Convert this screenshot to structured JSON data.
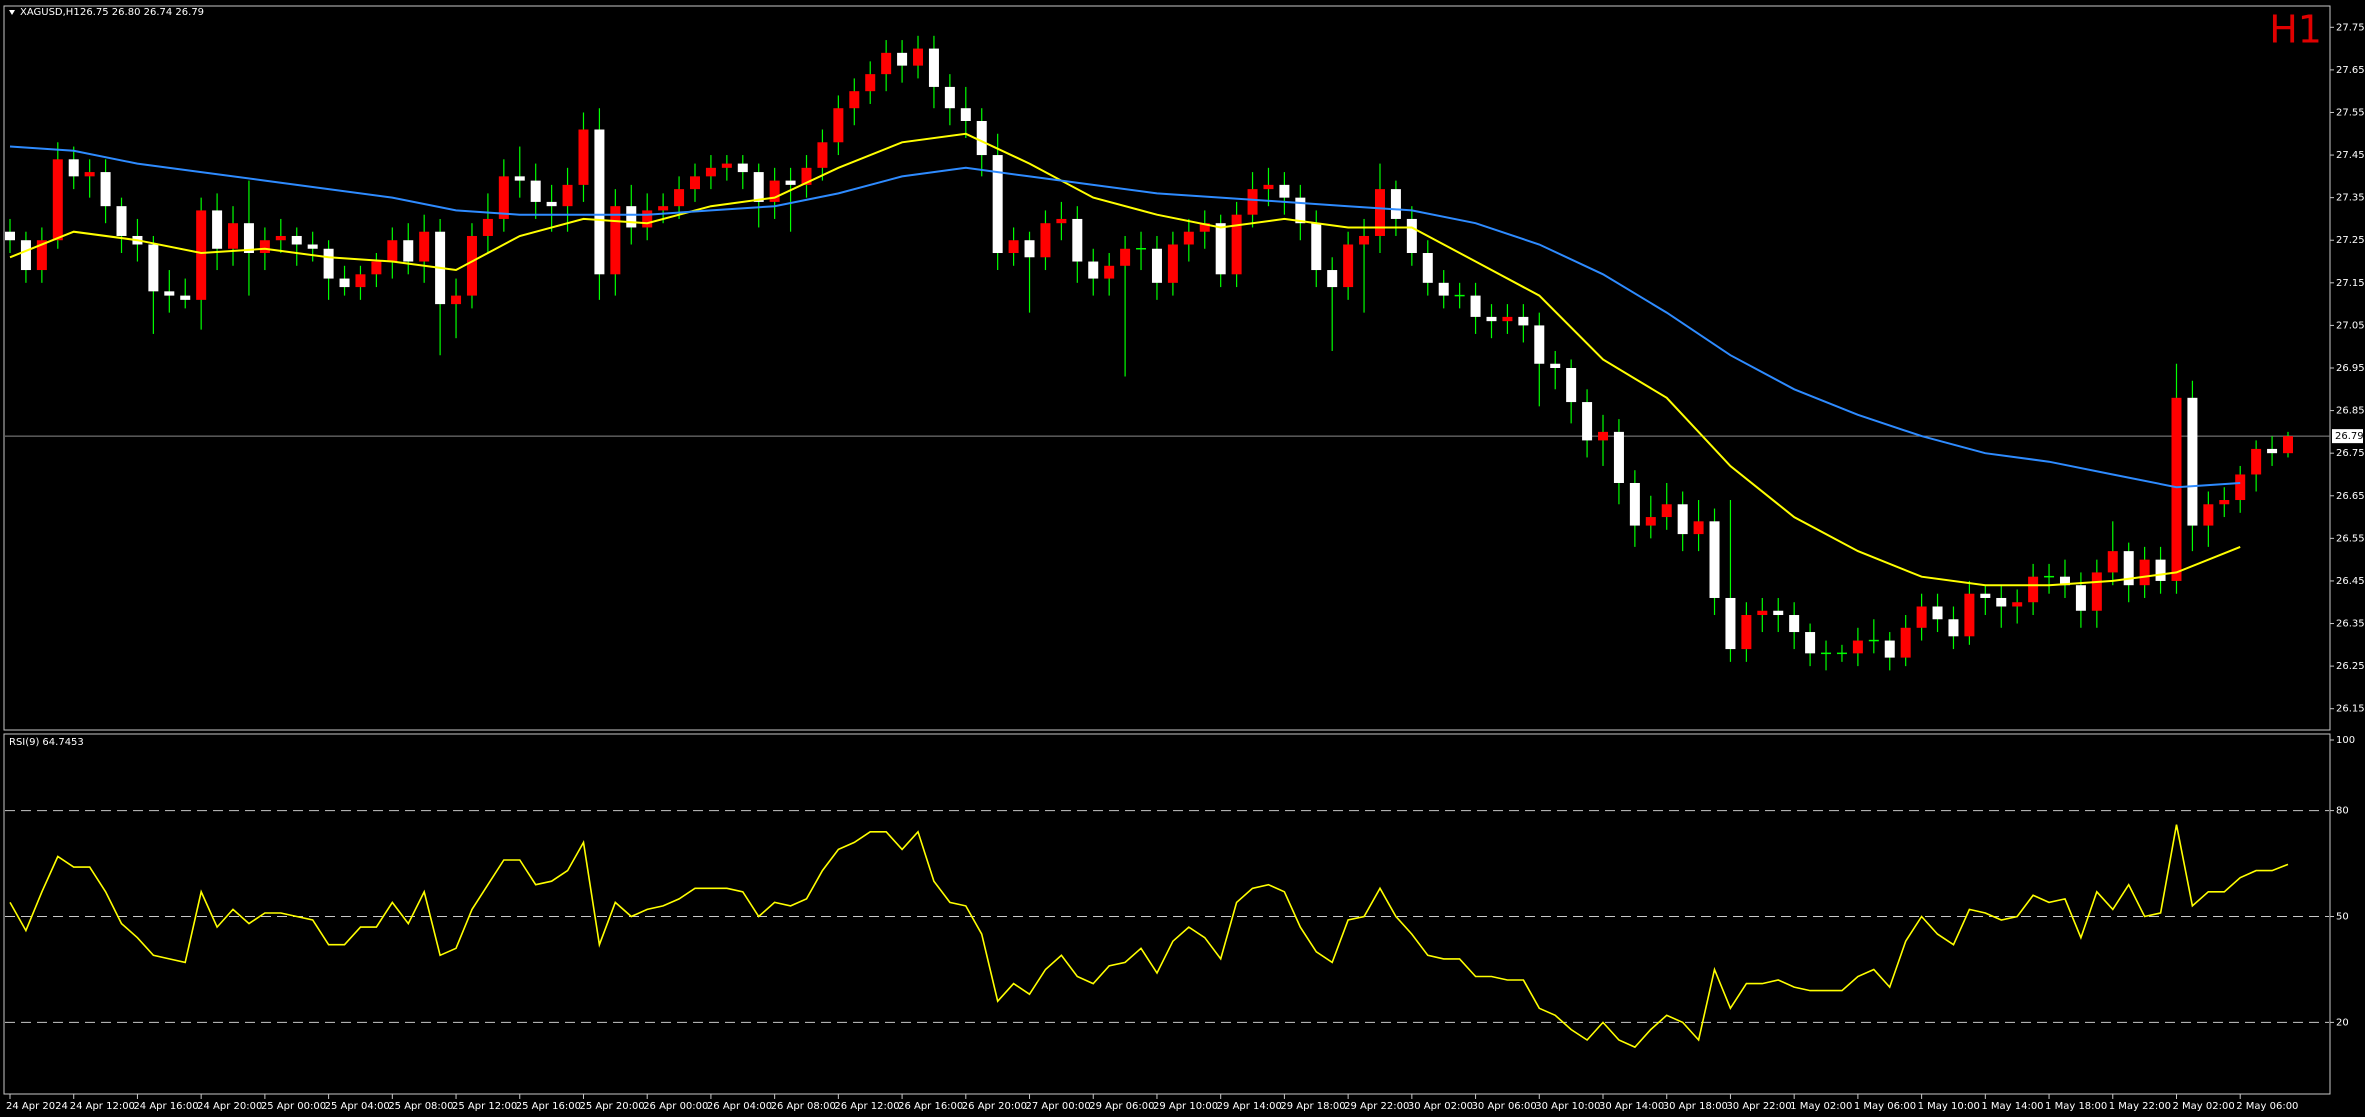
{
  "chart_data": {
    "type": "candlestick",
    "symbol": "XAGUSD,H1",
    "quote": "26.75 26.80 26.74 26.79",
    "timeframe_label": "H1",
    "categories": [
      "24 Apr 2024",
      "24 Apr 12:00",
      "24 Apr 16:00",
      "24 Apr 20:00",
      "25 Apr 00:00",
      "25 Apr 04:00",
      "25 Apr 08:00",
      "25 Apr 12:00",
      "25 Apr 16:00",
      "25 Apr 20:00",
      "26 Apr 00:00",
      "26 Apr 04:00",
      "26 Apr 08:00",
      "26 Apr 12:00",
      "26 Apr 16:00",
      "26 Apr 20:00",
      "27 Apr 00:00",
      "29 Apr 06:00",
      "29 Apr 10:00",
      "29 Apr 14:00",
      "29 Apr 18:00",
      "29 Apr 22:00",
      "30 Apr 02:00",
      "30 Apr 06:00",
      "30 Apr 10:00",
      "30 Apr 14:00",
      "30 Apr 18:00",
      "30 Apr 22:00",
      "1 May 02:00",
      "1 May 06:00",
      "1 May 10:00",
      "1 May 14:00",
      "1 May 18:00",
      "1 May 22:00",
      "2 May 02:00",
      "2 May 06:00"
    ],
    "ohlc": [
      [
        27.27,
        27.3,
        27.22,
        27.25
      ],
      [
        27.25,
        27.27,
        27.15,
        27.18
      ],
      [
        27.18,
        27.28,
        27.15,
        27.25
      ],
      [
        27.25,
        27.48,
        27.23,
        27.44
      ],
      [
        27.44,
        27.47,
        27.37,
        27.4
      ],
      [
        27.4,
        27.44,
        27.35,
        27.41
      ],
      [
        27.41,
        27.44,
        27.29,
        27.33
      ],
      [
        27.33,
        27.35,
        27.22,
        27.26
      ],
      [
        27.26,
        27.3,
        27.2,
        27.24
      ],
      [
        27.24,
        27.26,
        27.03,
        27.13
      ],
      [
        27.13,
        27.18,
        27.08,
        27.12
      ],
      [
        27.12,
        27.16,
        27.09,
        27.11
      ],
      [
        27.11,
        27.35,
        27.04,
        27.32
      ],
      [
        27.32,
        27.36,
        27.18,
        27.23
      ],
      [
        27.23,
        27.33,
        27.19,
        27.29
      ],
      [
        27.29,
        27.39,
        27.12,
        27.22
      ],
      [
        27.22,
        27.28,
        27.18,
        27.25
      ],
      [
        27.25,
        27.3,
        27.22,
        27.26
      ],
      [
        27.26,
        27.28,
        27.19,
        27.24
      ],
      [
        27.24,
        27.27,
        27.2,
        27.23
      ],
      [
        27.23,
        27.25,
        27.11,
        27.16
      ],
      [
        27.16,
        27.19,
        27.12,
        27.14
      ],
      [
        27.14,
        27.19,
        27.11,
        27.17
      ],
      [
        27.17,
        27.22,
        27.14,
        27.2
      ],
      [
        27.2,
        27.28,
        27.16,
        27.25
      ],
      [
        27.25,
        27.29,
        27.17,
        27.2
      ],
      [
        27.2,
        27.31,
        27.15,
        27.27
      ],
      [
        27.27,
        27.3,
        26.98,
        27.1
      ],
      [
        27.1,
        27.16,
        27.02,
        27.12
      ],
      [
        27.12,
        27.29,
        27.09,
        27.26
      ],
      [
        27.26,
        27.36,
        27.22,
        27.3
      ],
      [
        27.3,
        27.44,
        27.27,
        27.4
      ],
      [
        27.4,
        27.47,
        27.35,
        27.39
      ],
      [
        27.39,
        27.43,
        27.3,
        27.34
      ],
      [
        27.34,
        27.38,
        27.27,
        27.33
      ],
      [
        27.33,
        27.42,
        27.27,
        27.38
      ],
      [
        27.38,
        27.55,
        27.34,
        27.51
      ],
      [
        27.51,
        27.56,
        27.11,
        27.17
      ],
      [
        27.17,
        27.37,
        27.12,
        27.33
      ],
      [
        27.33,
        27.38,
        27.24,
        27.28
      ],
      [
        27.28,
        27.36,
        27.25,
        27.32
      ],
      [
        27.32,
        27.36,
        27.29,
        27.33
      ],
      [
        27.33,
        27.4,
        27.3,
        27.37
      ],
      [
        27.37,
        27.43,
        27.34,
        27.4
      ],
      [
        27.4,
        27.45,
        27.37,
        27.42
      ],
      [
        27.42,
        27.45,
        27.39,
        27.43
      ],
      [
        27.43,
        27.45,
        27.37,
        27.41
      ],
      [
        27.41,
        27.43,
        27.28,
        27.34
      ],
      [
        27.34,
        27.42,
        27.3,
        27.39
      ],
      [
        27.39,
        27.42,
        27.27,
        27.38
      ],
      [
        27.38,
        27.45,
        27.35,
        27.42
      ],
      [
        27.42,
        27.51,
        27.39,
        27.48
      ],
      [
        27.48,
        27.59,
        27.45,
        27.56
      ],
      [
        27.56,
        27.63,
        27.52,
        27.6
      ],
      [
        27.6,
        27.67,
        27.57,
        27.64
      ],
      [
        27.64,
        27.72,
        27.6,
        27.69
      ],
      [
        27.69,
        27.72,
        27.62,
        27.66
      ],
      [
        27.66,
        27.73,
        27.63,
        27.7
      ],
      [
        27.7,
        27.73,
        27.56,
        27.61
      ],
      [
        27.61,
        27.64,
        27.52,
        27.56
      ],
      [
        27.56,
        27.61,
        27.49,
        27.53
      ],
      [
        27.53,
        27.56,
        27.4,
        27.45
      ],
      [
        27.45,
        27.5,
        27.18,
        27.22
      ],
      [
        27.22,
        27.28,
        27.19,
        27.25
      ],
      [
        27.25,
        27.27,
        27.08,
        27.21
      ],
      [
        27.21,
        27.32,
        27.18,
        27.29
      ],
      [
        27.29,
        27.34,
        27.25,
        27.3
      ],
      [
        27.3,
        27.33,
        27.15,
        27.2
      ],
      [
        27.2,
        27.23,
        27.12,
        27.16
      ],
      [
        27.16,
        27.22,
        27.12,
        27.19
      ],
      [
        27.19,
        27.26,
        26.93,
        27.23
      ],
      [
        27.23,
        27.27,
        27.18,
        27.23
      ],
      [
        27.23,
        27.26,
        27.11,
        27.15
      ],
      [
        27.15,
        27.27,
        27.12,
        27.24
      ],
      [
        27.24,
        27.3,
        27.2,
        27.27
      ],
      [
        27.27,
        27.32,
        27.23,
        27.29
      ],
      [
        27.29,
        27.31,
        27.14,
        27.17
      ],
      [
        27.17,
        27.34,
        27.14,
        27.31
      ],
      [
        27.31,
        27.41,
        27.28,
        27.37
      ],
      [
        27.37,
        27.42,
        27.33,
        27.38
      ],
      [
        27.38,
        27.41,
        27.31,
        27.35
      ],
      [
        27.35,
        27.38,
        27.25,
        27.29
      ],
      [
        27.29,
        27.32,
        27.14,
        27.18
      ],
      [
        27.18,
        27.21,
        26.99,
        27.14
      ],
      [
        27.14,
        27.27,
        27.11,
        27.24
      ],
      [
        27.24,
        27.3,
        27.08,
        27.26
      ],
      [
        27.26,
        27.43,
        27.22,
        27.37
      ],
      [
        27.37,
        27.39,
        27.26,
        27.3
      ],
      [
        27.3,
        27.33,
        27.19,
        27.22
      ],
      [
        27.22,
        27.25,
        27.12,
        27.15
      ],
      [
        27.15,
        27.18,
        27.09,
        27.12
      ],
      [
        27.12,
        27.15,
        27.09,
        27.12
      ],
      [
        27.12,
        27.15,
        27.03,
        27.07
      ],
      [
        27.07,
        27.1,
        27.02,
        27.06
      ],
      [
        27.06,
        27.1,
        27.03,
        27.07
      ],
      [
        27.07,
        27.1,
        27.01,
        27.05
      ],
      [
        27.05,
        27.08,
        26.86,
        26.96
      ],
      [
        26.96,
        26.99,
        26.9,
        26.95
      ],
      [
        26.95,
        26.97,
        26.82,
        26.87
      ],
      [
        26.87,
        26.9,
        26.74,
        26.78
      ],
      [
        26.78,
        26.84,
        26.72,
        26.8
      ],
      [
        26.8,
        26.83,
        26.63,
        26.68
      ],
      [
        26.68,
        26.71,
        26.53,
        26.58
      ],
      [
        26.58,
        26.65,
        26.55,
        26.6
      ],
      [
        26.6,
        26.68,
        26.57,
        26.63
      ],
      [
        26.63,
        26.66,
        26.52,
        26.56
      ],
      [
        26.56,
        26.64,
        26.52,
        26.59
      ],
      [
        26.59,
        26.62,
        26.37,
        26.41
      ],
      [
        26.41,
        26.64,
        26.26,
        26.29
      ],
      [
        26.29,
        26.4,
        26.26,
        26.37
      ],
      [
        26.37,
        26.41,
        26.33,
        26.38
      ],
      [
        26.38,
        26.41,
        26.33,
        26.37
      ],
      [
        26.37,
        26.4,
        26.29,
        26.33
      ],
      [
        26.33,
        26.35,
        26.25,
        26.28
      ],
      [
        26.28,
        26.31,
        26.24,
        26.28
      ],
      [
        26.28,
        26.3,
        26.26,
        26.28
      ],
      [
        26.28,
        26.34,
        26.25,
        26.31
      ],
      [
        26.31,
        26.36,
        26.28,
        26.31
      ],
      [
        26.31,
        26.33,
        26.24,
        26.27
      ],
      [
        26.27,
        26.37,
        26.25,
        26.34
      ],
      [
        26.34,
        26.42,
        26.31,
        26.39
      ],
      [
        26.39,
        26.42,
        26.33,
        26.36
      ],
      [
        26.36,
        26.39,
        26.29,
        26.32
      ],
      [
        26.32,
        26.45,
        26.3,
        26.42
      ],
      [
        26.42,
        26.44,
        26.37,
        26.41
      ],
      [
        26.41,
        26.44,
        26.34,
        26.39
      ],
      [
        26.39,
        26.43,
        26.35,
        26.4
      ],
      [
        26.4,
        26.49,
        26.37,
        26.46
      ],
      [
        26.46,
        26.49,
        26.42,
        26.46
      ],
      [
        26.46,
        26.5,
        26.41,
        26.44
      ],
      [
        26.44,
        26.47,
        26.34,
        26.38
      ],
      [
        26.38,
        26.5,
        26.34,
        26.47
      ],
      [
        26.47,
        26.59,
        26.44,
        26.52
      ],
      [
        26.52,
        26.54,
        26.4,
        26.44
      ],
      [
        26.44,
        26.53,
        26.41,
        26.5
      ],
      [
        26.5,
        26.53,
        26.42,
        26.45
      ],
      [
        26.45,
        26.96,
        26.42,
        26.88
      ],
      [
        26.88,
        26.92,
        26.52,
        26.58
      ],
      [
        26.58,
        26.66,
        26.53,
        26.63
      ],
      [
        26.63,
        26.67,
        26.6,
        26.64
      ],
      [
        26.64,
        26.72,
        26.61,
        26.7
      ],
      [
        26.7,
        26.78,
        26.66,
        26.76
      ],
      [
        26.76,
        26.79,
        26.72,
        26.75
      ],
      [
        26.75,
        26.8,
        26.74,
        26.79
      ]
    ],
    "colors": {
      "up": "#ff0000",
      "down": "#ffffff",
      "wick": "#00ff00"
    },
    "ylim": [
      26.1,
      27.8
    ],
    "yticks": [
      27.75,
      27.65,
      27.55,
      27.45,
      27.35,
      27.25,
      27.15,
      27.05,
      26.95,
      26.85,
      26.75,
      26.65,
      26.55,
      26.45,
      26.35,
      26.25,
      26.15
    ],
    "moving_averages": [
      {
        "color": "#ffff00",
        "values": [
          27.21,
          27.27,
          27.25,
          27.22,
          27.23,
          27.21,
          27.2,
          27.18,
          27.26,
          27.3,
          27.29,
          27.33,
          27.35,
          27.42,
          27.48,
          27.5,
          27.43,
          27.35,
          27.31,
          27.28,
          27.3,
          27.28,
          27.28,
          27.2,
          27.12,
          26.97,
          26.88,
          26.72,
          26.6,
          26.52,
          26.46,
          26.44,
          26.44,
          26.45,
          26.47,
          26.53
        ]
      },
      {
        "color": "#2e8bff",
        "values": [
          27.47,
          27.46,
          27.43,
          27.41,
          27.39,
          27.37,
          27.35,
          27.32,
          27.31,
          27.31,
          27.31,
          27.32,
          27.33,
          27.36,
          27.4,
          27.42,
          27.4,
          27.38,
          27.36,
          27.35,
          27.34,
          27.33,
          27.32,
          27.29,
          27.24,
          27.17,
          27.08,
          26.98,
          26.9,
          26.84,
          26.79,
          26.75,
          26.73,
          26.7,
          26.67,
          26.68
        ]
      }
    ],
    "indicator": {
      "type": "line",
      "title": "RSI(9)",
      "color": "#ffff00",
      "ylim": [
        0,
        100
      ],
      "yticks": [
        100,
        80,
        50,
        20
      ],
      "values": [
        54,
        46,
        57,
        67,
        64,
        64,
        57,
        48,
        44,
        39,
        38,
        37,
        57,
        47,
        52,
        48,
        51,
        51,
        50,
        49,
        42,
        42,
        47,
        47,
        54,
        48,
        57,
        39,
        41,
        52,
        59,
        66,
        66,
        59,
        60,
        63,
        71,
        42,
        54,
        50,
        52,
        53,
        55,
        58,
        58,
        58,
        57,
        50,
        54,
        53,
        55,
        63,
        69,
        71,
        74,
        74,
        69,
        74,
        60,
        54,
        53,
        45,
        26,
        31,
        28,
        35,
        39,
        33,
        31,
        36,
        37,
        41,
        34,
        43,
        47,
        44,
        38,
        54,
        58,
        59,
        57,
        47,
        40,
        37,
        49,
        50,
        58,
        50,
        45,
        39,
        38,
        38,
        33,
        33,
        32,
        32,
        24,
        22,
        18,
        15,
        20,
        15,
        13,
        18,
        22,
        20,
        15,
        35,
        24,
        31,
        31,
        32,
        30,
        29,
        29,
        29,
        33,
        35,
        30,
        43,
        50,
        45,
        42,
        52,
        51,
        49,
        50,
        56,
        54,
        55,
        44,
        57,
        52,
        59,
        50,
        51,
        76,
        53,
        57,
        57,
        61,
        63,
        63,
        64.7453
      ]
    }
  }
}
